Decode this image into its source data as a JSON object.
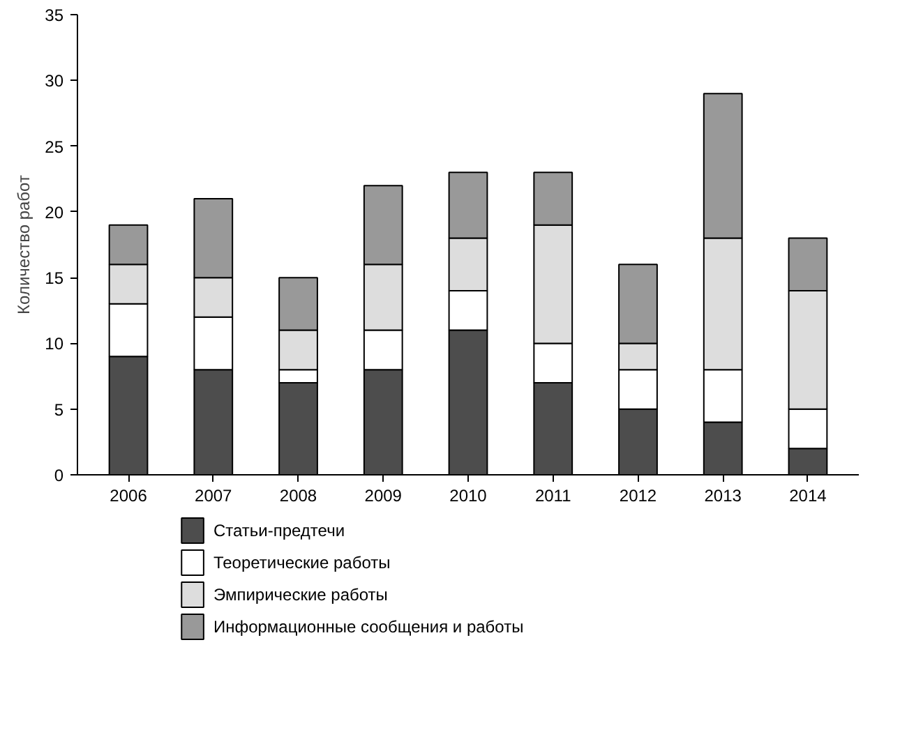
{
  "chart_data": {
    "type": "bar",
    "stacked": true,
    "ylabel": "Количество работ",
    "categories": [
      "2006",
      "2007",
      "2008",
      "2009",
      "2010",
      "2011",
      "2012",
      "2013",
      "2014"
    ],
    "ylim": [
      0,
      35
    ],
    "yticks": [
      0,
      5,
      10,
      15,
      20,
      25,
      30,
      35
    ],
    "grid": false,
    "legend": "bottom",
    "series": [
      {
        "name": "Статьи-предтечи",
        "color": "#4d4d4d",
        "values": [
          9,
          8,
          7,
          8,
          11,
          7,
          5,
          4,
          2
        ]
      },
      {
        "name": "Теоретические работы",
        "color": "#ffffff",
        "values": [
          4,
          4,
          1,
          3,
          3,
          3,
          3,
          4,
          3
        ]
      },
      {
        "name": "Эмпирические работы",
        "color": "#dddddd",
        "values": [
          3,
          3,
          3,
          5,
          4,
          9,
          2,
          10,
          9
        ]
      },
      {
        "name": "Информационные сообщения и работы",
        "color": "#999999",
        "values": [
          3,
          6,
          4,
          6,
          5,
          4,
          6,
          11,
          4
        ]
      }
    ]
  }
}
